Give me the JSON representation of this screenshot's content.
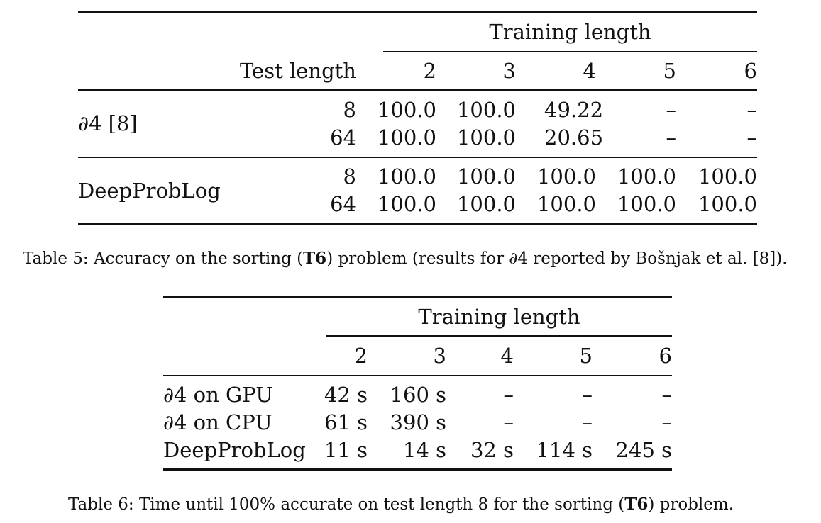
{
  "table5": {
    "training_header": "Training length",
    "test_header": "Test length",
    "columns": [
      "2",
      "3",
      "4",
      "5",
      "6"
    ],
    "groups": [
      {
        "method": "∂4 [8]",
        "rows": [
          {
            "test": "8",
            "values": [
              "100.0",
              "100.0",
              "49.22",
              "–",
              "–"
            ]
          },
          {
            "test": "64",
            "values": [
              "100.0",
              "100.0",
              "20.65",
              "–",
              "–"
            ]
          }
        ]
      },
      {
        "method": "DeepProbLog",
        "rows": [
          {
            "test": "8",
            "values": [
              "100.0",
              "100.0",
              "100.0",
              "100.0",
              "100.0"
            ]
          },
          {
            "test": "64",
            "values": [
              "100.0",
              "100.0",
              "100.0",
              "100.0",
              "100.0"
            ]
          }
        ]
      }
    ],
    "caption": {
      "prefix": "Table 5: Accuracy on the sorting (",
      "bold": "T6",
      "suffix": ") problem (results for ∂4 reported by Bošnjak et al. [8])."
    }
  },
  "table6": {
    "training_header": "Training length",
    "columns": [
      "2",
      "3",
      "4",
      "5",
      "6"
    ],
    "rows": [
      {
        "method": "∂4 on GPU",
        "values": [
          "42 s",
          "160 s",
          "–",
          "–",
          "–"
        ]
      },
      {
        "method": "∂4 on CPU",
        "values": [
          "61 s",
          "390 s",
          "–",
          "–",
          "–"
        ]
      },
      {
        "method": "DeepProbLog",
        "values": [
          "11 s",
          "14 s",
          "32 s",
          "114 s",
          "245 s"
        ]
      }
    ],
    "caption": {
      "prefix": "Table 6: Time until 100% accurate on test length 8 for the sorting (",
      "bold": "T6",
      "suffix": ") problem."
    }
  }
}
